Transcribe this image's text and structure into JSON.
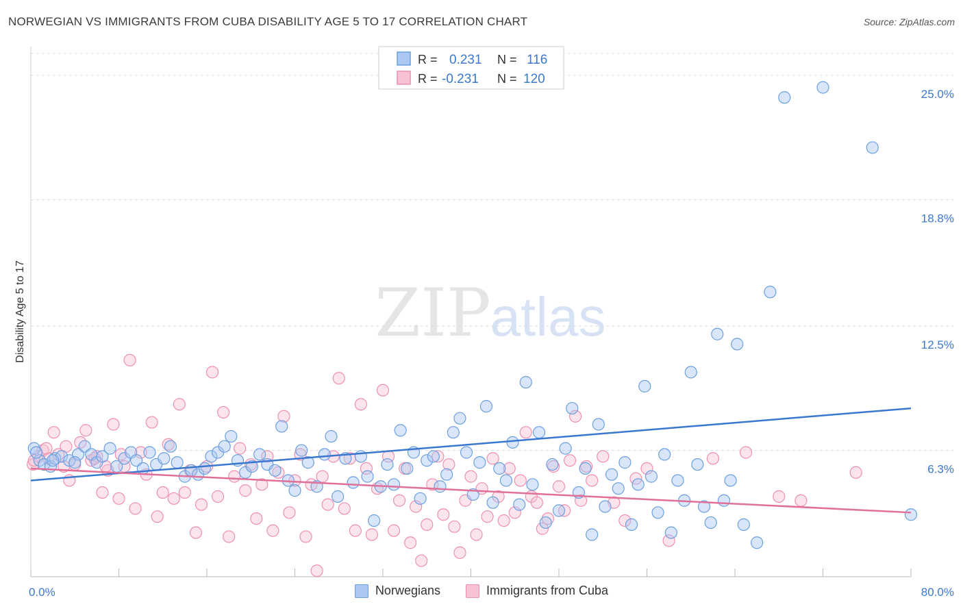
{
  "title": "NORWEGIAN VS IMMIGRANTS FROM CUBA DISABILITY AGE 5 TO 17 CORRELATION CHART",
  "source": "Source: ZipAtlas.com",
  "watermark": {
    "zip": "ZIP",
    "atlas": "atlas"
  },
  "colors": {
    "blue": "#6b9fe0",
    "blue_fill": "#aac8f2",
    "blue_line": "#3a78d0",
    "pink": "#ee8fb0",
    "pink_fill": "#f7c3d4",
    "pink_line": "#e0709a",
    "tick_label": "#3a78d0",
    "grid": "#dddddd"
  },
  "legend_top": {
    "rows": [
      {
        "series": "blue",
        "r_label": "R =",
        "r_value": "0.231",
        "n_label": "N =",
        "n_value": "116"
      },
      {
        "series": "pink",
        "r_label": "R =",
        "r_value": "-0.231",
        "n_label": "N =",
        "n_value": "120"
      }
    ]
  },
  "chart_data": {
    "type": "scatter",
    "title": "NORWEGIAN VS IMMIGRANTS FROM CUBA DISABILITY AGE 5 TO 17 CORRELATION CHART",
    "xlabel": "",
    "ylabel": "Disability Age 5 to 17",
    "xlim": [
      0,
      80
    ],
    "ylim": [
      0,
      26.3
    ],
    "x_tick_labels": [
      {
        "value": 0,
        "label": "0.0%"
      },
      {
        "value": 80,
        "label": "80.0%"
      }
    ],
    "y_ticks": [
      {
        "value": 6.3,
        "label": "6.3%"
      },
      {
        "value": 12.5,
        "label": "12.5%"
      },
      {
        "value": 18.8,
        "label": "18.8%"
      },
      {
        "value": 25.0,
        "label": "25.0%"
      }
    ],
    "grid": true,
    "legend": "bottom-center",
    "series": [
      {
        "name": "Norwegians",
        "color": "#6b9fe0",
        "trend": {
          "x": [
            0,
            80
          ],
          "y": [
            4.8,
            8.4
          ]
        },
        "points": [
          [
            0.3,
            6.4
          ],
          [
            0.8,
            5.8
          ],
          [
            1.2,
            5.6
          ],
          [
            1.8,
            5.5
          ],
          [
            2.2,
            5.9
          ],
          [
            2.8,
            6.0
          ],
          [
            3.5,
            5.8
          ],
          [
            4.3,
            6.1
          ],
          [
            4.9,
            6.5
          ],
          [
            5.5,
            6.1
          ],
          [
            6.0,
            5.7
          ],
          [
            6.5,
            6.0
          ],
          [
            7.2,
            6.4
          ],
          [
            7.8,
            5.5
          ],
          [
            8.5,
            5.9
          ],
          [
            9.1,
            6.2
          ],
          [
            9.6,
            5.8
          ],
          [
            10.2,
            5.4
          ],
          [
            10.8,
            6.2
          ],
          [
            11.4,
            5.6
          ],
          [
            12.1,
            5.9
          ],
          [
            12.7,
            6.5
          ],
          [
            13.3,
            5.7
          ],
          [
            14.0,
            5.0
          ],
          [
            14.6,
            5.3
          ],
          [
            15.2,
            5.1
          ],
          [
            15.8,
            5.4
          ],
          [
            16.4,
            6.0
          ],
          [
            17.0,
            6.2
          ],
          [
            17.6,
            6.5
          ],
          [
            18.2,
            7.0
          ],
          [
            18.8,
            5.8
          ],
          [
            19.5,
            5.2
          ],
          [
            20.1,
            5.5
          ],
          [
            20.8,
            6.1
          ],
          [
            21.5,
            5.6
          ],
          [
            22.2,
            5.3
          ],
          [
            22.8,
            7.5
          ],
          [
            23.4,
            4.8
          ],
          [
            24.0,
            4.3
          ],
          [
            24.6,
            6.3
          ],
          [
            25.2,
            5.7
          ],
          [
            26.0,
            4.5
          ],
          [
            26.7,
            6.1
          ],
          [
            27.3,
            7.0
          ],
          [
            27.9,
            4.0
          ],
          [
            28.6,
            5.9
          ],
          [
            29.3,
            4.7
          ],
          [
            30.0,
            6.0
          ],
          [
            30.6,
            5.0
          ],
          [
            31.2,
            2.8
          ],
          [
            31.8,
            4.5
          ],
          [
            32.4,
            5.6
          ],
          [
            33.0,
            4.6
          ],
          [
            33.6,
            7.3
          ],
          [
            34.2,
            5.4
          ],
          [
            34.8,
            6.2
          ],
          [
            35.4,
            3.9
          ],
          [
            36.0,
            5.8
          ],
          [
            36.6,
            6.0
          ],
          [
            37.2,
            4.5
          ],
          [
            37.8,
            5.1
          ],
          [
            38.4,
            7.2
          ],
          [
            39.0,
            7.9
          ],
          [
            39.6,
            6.2
          ],
          [
            40.2,
            4.1
          ],
          [
            40.8,
            5.7
          ],
          [
            41.4,
            8.5
          ],
          [
            42.0,
            3.7
          ],
          [
            42.6,
            5.4
          ],
          [
            43.2,
            4.8
          ],
          [
            43.8,
            6.7
          ],
          [
            44.4,
            3.6
          ],
          [
            45.0,
            9.7
          ],
          [
            45.6,
            4.6
          ],
          [
            46.2,
            7.2
          ],
          [
            46.8,
            2.7
          ],
          [
            47.4,
            5.6
          ],
          [
            48.0,
            3.3
          ],
          [
            48.6,
            6.4
          ],
          [
            49.2,
            8.4
          ],
          [
            49.8,
            4.2
          ],
          [
            50.4,
            5.4
          ],
          [
            51.0,
            2.1
          ],
          [
            51.6,
            7.6
          ],
          [
            52.2,
            3.5
          ],
          [
            52.8,
            5.1
          ],
          [
            53.4,
            4.4
          ],
          [
            54.0,
            5.7
          ],
          [
            54.6,
            2.6
          ],
          [
            55.2,
            4.6
          ],
          [
            55.8,
            9.5
          ],
          [
            56.4,
            5.0
          ],
          [
            57.0,
            3.2
          ],
          [
            57.6,
            6.1
          ],
          [
            58.2,
            2.2
          ],
          [
            58.8,
            4.8
          ],
          [
            59.4,
            3.8
          ],
          [
            60.0,
            10.2
          ],
          [
            60.6,
            5.6
          ],
          [
            61.2,
            3.5
          ],
          [
            61.8,
            2.7
          ],
          [
            62.4,
            12.1
          ],
          [
            63.0,
            3.8
          ],
          [
            63.6,
            4.8
          ],
          [
            64.2,
            11.6
          ],
          [
            64.8,
            2.6
          ],
          [
            66.0,
            1.7
          ],
          [
            67.2,
            14.2
          ],
          [
            68.5,
            23.9
          ],
          [
            72.0,
            24.4
          ],
          [
            76.5,
            21.4
          ],
          [
            80.0,
            3.1
          ],
          [
            2.0,
            5.8
          ],
          [
            4.0,
            5.7
          ],
          [
            0.5,
            6.2
          ]
        ]
      },
      {
        "name": "Immigrants from Cuba",
        "color": "#ee8fb0",
        "trend": {
          "x": [
            0,
            80
          ],
          "y": [
            5.4,
            3.2
          ]
        },
        "points": [
          [
            0.2,
            5.6
          ],
          [
            0.7,
            6.0
          ],
          [
            1.1,
            6.3
          ],
          [
            1.6,
            5.9
          ],
          [
            2.1,
            7.2
          ],
          [
            2.5,
            6.1
          ],
          [
            3.0,
            5.5
          ],
          [
            3.5,
            4.8
          ],
          [
            4.0,
            5.6
          ],
          [
            4.5,
            6.7
          ],
          [
            5.0,
            7.3
          ],
          [
            5.5,
            5.8
          ],
          [
            6.0,
            6.0
          ],
          [
            6.5,
            4.2
          ],
          [
            7.0,
            5.3
          ],
          [
            7.5,
            7.6
          ],
          [
            8.0,
            3.9
          ],
          [
            8.5,
            5.5
          ],
          [
            9.0,
            10.8
          ],
          [
            9.5,
            3.4
          ],
          [
            10.0,
            6.2
          ],
          [
            10.5,
            5.1
          ],
          [
            11.0,
            7.7
          ],
          [
            11.5,
            3.0
          ],
          [
            12.0,
            4.2
          ],
          [
            12.5,
            6.6
          ],
          [
            13.0,
            3.9
          ],
          [
            13.5,
            8.6
          ],
          [
            14.0,
            4.2
          ],
          [
            14.5,
            5.3
          ],
          [
            15.0,
            2.2
          ],
          [
            15.5,
            3.6
          ],
          [
            16.0,
            5.5
          ],
          [
            16.5,
            10.2
          ],
          [
            17.0,
            4.0
          ],
          [
            17.5,
            8.2
          ],
          [
            18.0,
            2.0
          ],
          [
            18.5,
            5.0
          ],
          [
            19.0,
            6.4
          ],
          [
            19.5,
            4.3
          ],
          [
            20.0,
            5.6
          ],
          [
            20.5,
            2.9
          ],
          [
            21.0,
            4.6
          ],
          [
            21.5,
            6.0
          ],
          [
            22.0,
            2.3
          ],
          [
            22.5,
            5.2
          ],
          [
            23.0,
            8.0
          ],
          [
            23.5,
            3.2
          ],
          [
            24.0,
            4.8
          ],
          [
            24.5,
            6.1
          ],
          [
            25.0,
            2.0
          ],
          [
            25.5,
            4.6
          ],
          [
            26.0,
            0.3
          ],
          [
            26.5,
            5.0
          ],
          [
            27.0,
            3.6
          ],
          [
            27.5,
            6.0
          ],
          [
            28.0,
            9.9
          ],
          [
            28.5,
            3.4
          ],
          [
            29.0,
            5.9
          ],
          [
            29.5,
            2.3
          ],
          [
            30.0,
            8.6
          ],
          [
            30.5,
            5.4
          ],
          [
            31.0,
            2.1
          ],
          [
            31.5,
            4.4
          ],
          [
            32.0,
            9.3
          ],
          [
            32.5,
            6.0
          ],
          [
            33.0,
            2.3
          ],
          [
            33.5,
            3.8
          ],
          [
            34.0,
            5.4
          ],
          [
            34.5,
            1.7
          ],
          [
            35.0,
            3.5
          ],
          [
            35.5,
            0.8
          ],
          [
            36.0,
            2.6
          ],
          [
            36.5,
            4.6
          ],
          [
            37.0,
            6.0
          ],
          [
            37.5,
            3.1
          ],
          [
            38.0,
            5.6
          ],
          [
            38.5,
            2.5
          ],
          [
            39.0,
            1.2
          ],
          [
            39.5,
            3.8
          ],
          [
            40.0,
            5.0
          ],
          [
            40.5,
            2.1
          ],
          [
            41.0,
            4.4
          ],
          [
            41.5,
            3.0
          ],
          [
            42.0,
            5.9
          ],
          [
            42.5,
            4.0
          ],
          [
            43.0,
            2.8
          ],
          [
            43.5,
            5.4
          ],
          [
            44.0,
            3.2
          ],
          [
            44.5,
            4.8
          ],
          [
            45.0,
            7.2
          ],
          [
            45.5,
            4.0
          ],
          [
            46.0,
            3.7
          ],
          [
            46.5,
            2.4
          ],
          [
            47.0,
            2.9
          ],
          [
            47.5,
            5.5
          ],
          [
            48.0,
            4.5
          ],
          [
            48.5,
            3.3
          ],
          [
            49.0,
            5.8
          ],
          [
            49.5,
            8.0
          ],
          [
            50.0,
            3.8
          ],
          [
            50.5,
            5.5
          ],
          [
            51.0,
            4.8
          ],
          [
            52.0,
            6.0
          ],
          [
            53.0,
            3.7
          ],
          [
            54.0,
            2.8
          ],
          [
            55.0,
            4.9
          ],
          [
            56.0,
            5.4
          ],
          [
            58.0,
            1.8
          ],
          [
            62.0,
            5.9
          ],
          [
            65.0,
            6.2
          ],
          [
            68.0,
            4.0
          ],
          [
            70.0,
            3.8
          ],
          [
            75.0,
            5.2
          ],
          [
            8.2,
            6.1
          ],
          [
            1.4,
            6.4
          ],
          [
            3.2,
            6.5
          ],
          [
            5.8,
            5.9
          ],
          [
            6.8,
            5.5
          ],
          [
            0.3,
            5.8
          ]
        ]
      }
    ]
  }
}
